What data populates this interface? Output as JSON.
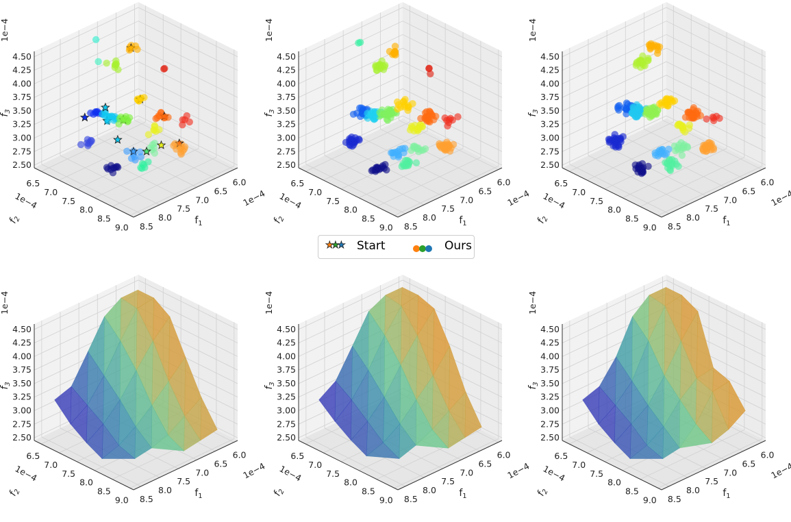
{
  "legend": {
    "start_label": "Start",
    "ours_label": "Ours",
    "start_colors": [
      "#ff7f0e",
      "#2ca02c",
      "#1f77b4"
    ],
    "ours_colors": [
      "#ff7f0e",
      "#2ca02c",
      "#1f77b4"
    ]
  },
  "axes_common": {
    "xlabel": "f1",
    "ylabel": "f2",
    "zlabel": "f3",
    "offset_text": "1e−4",
    "f1_lim": [
      5.9,
      8.7
    ],
    "f2_lim": [
      6.3,
      9.1
    ],
    "f3_lim": [
      2.45,
      4.6
    ],
    "f1_ticks": [
      "6.0",
      "6.5",
      "7.0",
      "7.5",
      "8.0",
      "8.5"
    ],
    "f2_ticks": [
      "6.5",
      "7.0",
      "7.5",
      "8.0",
      "8.5",
      "9.0"
    ],
    "f3_ticks": [
      "2.50",
      "2.75",
      "3.00",
      "3.25",
      "3.50",
      "3.75",
      "4.00",
      "4.25",
      "4.50"
    ],
    "grid": true
  },
  "chart_data": [
    {
      "type": "scatter",
      "clusters": [
        {
          "f1": 7.99,
          "f2": 7.78,
          "f3": 2.7,
          "color": "#10108a",
          "n": 10
        },
        {
          "f1": 7.96,
          "f2": 7.06,
          "f3": 2.9,
          "color": "#3a4ae0",
          "n": 8
        },
        {
          "f1": 7.61,
          "f2": 6.89,
          "f3": 3.3,
          "color": "#1030f0",
          "n": 8
        },
        {
          "f1": 7.52,
          "f2": 7.18,
          "f3": 3.3,
          "color": "#10c8f0",
          "n": 14
        },
        {
          "f1": 7.48,
          "f2": 7.82,
          "f3": 2.8,
          "color": "#40a0ff",
          "n": 8
        },
        {
          "f1": 7.48,
          "f2": 8.11,
          "f3": 2.7,
          "color": "#30f0a0",
          "n": 6
        },
        {
          "f1": 7.42,
          "f2": 7.47,
          "f3": 3.3,
          "color": "#80f040",
          "n": 12
        },
        {
          "f1": 7.44,
          "f2": 7.26,
          "f3": 4.25,
          "color": "#a8f030",
          "n": 8
        },
        {
          "f1": 7.45,
          "f2": 6.73,
          "f3": 4.55,
          "color": "#30f0d0",
          "n": 1
        },
        {
          "f1": 7.5,
          "f2": 6.85,
          "f3": 4.2,
          "color": "#40f0c0",
          "n": 1
        },
        {
          "f1": 7.09,
          "f2": 7.32,
          "f3": 4.45,
          "color": "#ffb000",
          "n": 6
        },
        {
          "f1": 7.22,
          "f2": 7.74,
          "f3": 3.7,
          "color": "#ffd000",
          "n": 8
        },
        {
          "f1": 6.98,
          "f2": 7.88,
          "f3": 3.1,
          "color": "#e8f020",
          "n": 7
        },
        {
          "f1": 6.91,
          "f2": 8.09,
          "f3": 3.4,
          "color": "#ff6a10",
          "n": 10
        },
        {
          "f1": 6.72,
          "f2": 8.47,
          "f3": 3.4,
          "color": "#f03020",
          "n": 5
        },
        {
          "f1": 6.93,
          "f2": 8.12,
          "f3": 4.3,
          "color": "#e02010",
          "n": 2
        },
        {
          "f1": 6.85,
          "f2": 8.51,
          "f3": 2.95,
          "color": "#ffa030",
          "n": 12
        },
        {
          "f1": 7.1,
          "f2": 8.0,
          "f3": 2.85,
          "color": "#80f0a0",
          "n": 6
        }
      ],
      "stars": [
        {
          "f1": 7.96,
          "f2": 6.95,
          "f3": 3.35,
          "color": "#1030f0"
        },
        {
          "f1": 7.55,
          "f2": 7.1,
          "f3": 3.45,
          "color": "#10c8f0"
        },
        {
          "f1": 7.6,
          "f2": 7.2,
          "f3": 3.25,
          "color": "#10c8f0"
        },
        {
          "f1": 7.6,
          "f2": 7.5,
          "f3": 3.0,
          "color": "#10c8f0"
        },
        {
          "f1": 7.48,
          "f2": 7.82,
          "f3": 2.85,
          "color": "#40a0ff"
        },
        {
          "f1": 7.3,
          "f2": 8.0,
          "f3": 2.85,
          "color": "#50e070"
        },
        {
          "f1": 7.42,
          "f2": 7.47,
          "f3": 3.3,
          "color": "#80f040"
        },
        {
          "f1": 7.0,
          "f2": 8.1,
          "f3": 2.9,
          "color": "#e8f020"
        },
        {
          "f1": 6.85,
          "f2": 8.45,
          "f3": 3.0,
          "color": "#ff7010"
        },
        {
          "f1": 6.91,
          "f2": 8.09,
          "f3": 3.4,
          "color": "#ff6a10"
        },
        {
          "f1": 7.22,
          "f2": 7.74,
          "f3": 3.7,
          "color": "#ffd000"
        },
        {
          "f1": 7.05,
          "f2": 7.3,
          "f3": 4.45,
          "color": "#ffb000"
        }
      ]
    },
    {
      "type": "scatter",
      "clusters": [
        {
          "f1": 7.99,
          "f2": 7.78,
          "f3": 2.7,
          "color": "#10108a",
          "n": 16
        },
        {
          "f1": 7.96,
          "f2": 7.06,
          "f3": 2.95,
          "color": "#1a2ad0",
          "n": 22
        },
        {
          "f1": 7.61,
          "f2": 6.95,
          "f3": 3.35,
          "color": "#1060f0",
          "n": 14
        },
        {
          "f1": 7.52,
          "f2": 7.18,
          "f3": 3.35,
          "color": "#20d0f0",
          "n": 30
        },
        {
          "f1": 7.48,
          "f2": 7.82,
          "f3": 2.85,
          "color": "#40b0ff",
          "n": 14
        },
        {
          "f1": 7.48,
          "f2": 8.11,
          "f3": 2.7,
          "color": "#50f0a0",
          "n": 14
        },
        {
          "f1": 7.42,
          "f2": 7.47,
          "f3": 3.4,
          "color": "#80f060",
          "n": 30
        },
        {
          "f1": 7.44,
          "f2": 7.26,
          "f3": 4.25,
          "color": "#a8f030",
          "n": 16
        },
        {
          "f1": 7.45,
          "f2": 6.73,
          "f3": 4.5,
          "color": "#30f0a0",
          "n": 2
        },
        {
          "f1": 7.09,
          "f2": 7.32,
          "f3": 4.4,
          "color": "#ffb000",
          "n": 10
        },
        {
          "f1": 7.22,
          "f2": 7.74,
          "f3": 3.6,
          "color": "#ffd000",
          "n": 14
        },
        {
          "f1": 6.98,
          "f2": 7.88,
          "f3": 3.15,
          "color": "#e8f020",
          "n": 14
        },
        {
          "f1": 6.91,
          "f2": 8.09,
          "f3": 3.4,
          "color": "#ff6a10",
          "n": 20
        },
        {
          "f1": 6.72,
          "f2": 8.47,
          "f3": 3.4,
          "color": "#f03020",
          "n": 8
        },
        {
          "f1": 6.93,
          "f2": 8.12,
          "f3": 4.3,
          "color": "#e02010",
          "n": 3
        },
        {
          "f1": 6.85,
          "f2": 8.51,
          "f3": 2.95,
          "color": "#ffa030",
          "n": 24
        },
        {
          "f1": 7.1,
          "f2": 8.0,
          "f3": 2.85,
          "color": "#80f0a0",
          "n": 12
        }
      ],
      "stars": []
    },
    {
      "type": "scatter",
      "clusters": [
        {
          "f1": 7.99,
          "f2": 7.78,
          "f3": 2.7,
          "color": "#10108a",
          "n": 18
        },
        {
          "f1": 7.96,
          "f2": 7.06,
          "f3": 2.95,
          "color": "#1a2ad0",
          "n": 26
        },
        {
          "f1": 7.61,
          "f2": 6.95,
          "f3": 3.4,
          "color": "#1060f0",
          "n": 18
        },
        {
          "f1": 7.52,
          "f2": 7.18,
          "f3": 3.4,
          "color": "#20c8f0",
          "n": 34
        },
        {
          "f1": 7.48,
          "f2": 7.82,
          "f3": 2.85,
          "color": "#40b0ff",
          "n": 14
        },
        {
          "f1": 7.48,
          "f2": 8.11,
          "f3": 2.7,
          "color": "#50f0a0",
          "n": 16
        },
        {
          "f1": 7.42,
          "f2": 7.47,
          "f3": 3.45,
          "color": "#90f050",
          "n": 28
        },
        {
          "f1": 7.44,
          "f2": 7.26,
          "f3": 4.3,
          "color": "#b0f030",
          "n": 18
        },
        {
          "f1": 7.05,
          "f2": 7.25,
          "f3": 4.45,
          "color": "#ffb000",
          "n": 14
        },
        {
          "f1": 7.22,
          "f2": 7.7,
          "f3": 3.65,
          "color": "#ffd000",
          "n": 18
        },
        {
          "f1": 6.98,
          "f2": 7.88,
          "f3": 3.15,
          "color": "#e8f020",
          "n": 14
        },
        {
          "f1": 6.91,
          "f2": 8.09,
          "f3": 3.45,
          "color": "#ff6a10",
          "n": 24
        },
        {
          "f1": 6.72,
          "f2": 8.47,
          "f3": 3.45,
          "color": "#f03020",
          "n": 6
        },
        {
          "f1": 6.85,
          "f2": 8.51,
          "f3": 2.95,
          "color": "#ffa030",
          "n": 26
        },
        {
          "f1": 7.1,
          "f2": 8.0,
          "f3": 2.85,
          "color": "#80f0a0",
          "n": 14
        }
      ],
      "stars": []
    },
    {
      "type": "surface",
      "f1": [
        6.18,
        6.63,
        7.08,
        7.52,
        7.97,
        8.42
      ],
      "f2": [
        6.58,
        7.03,
        7.48,
        7.92,
        8.37,
        8.82
      ],
      "f3": [
        [
          4.5,
          4.5,
          4.3,
          3.7,
          3.1,
          2.65
        ],
        [
          4.5,
          4.45,
          4.0,
          3.4,
          2.9,
          2.6
        ],
        [
          4.3,
          4.0,
          3.6,
          3.1,
          2.7,
          2.55
        ],
        [
          3.8,
          3.5,
          3.2,
          2.85,
          2.6,
          null
        ],
        [
          3.3,
          3.1,
          2.9,
          2.65,
          2.55,
          null
        ],
        [
          3.2,
          2.9,
          2.7,
          2.55,
          null,
          null
        ]
      ]
    },
    {
      "type": "surface",
      "f1": [
        6.18,
        6.63,
        7.08,
        7.52,
        7.97,
        8.42
      ],
      "f2": [
        6.58,
        7.03,
        7.48,
        7.92,
        8.37,
        8.82
      ],
      "f3": [
        [
          4.55,
          4.55,
          4.45,
          3.9,
          3.2,
          2.7
        ],
        [
          4.55,
          4.5,
          4.1,
          3.5,
          3.0,
          2.65
        ],
        [
          4.4,
          4.1,
          3.7,
          3.2,
          2.8,
          2.6
        ],
        [
          3.9,
          3.6,
          3.25,
          2.9,
          2.65,
          null
        ],
        [
          3.4,
          3.2,
          2.95,
          2.7,
          2.55,
          null
        ],
        [
          3.2,
          2.95,
          2.75,
          2.6,
          null,
          null
        ]
      ]
    },
    {
      "type": "surface",
      "f1": [
        6.18,
        6.63,
        7.08,
        7.52,
        7.97,
        8.42
      ],
      "f2": [
        6.58,
        7.03,
        7.48,
        7.92,
        8.37,
        8.82
      ],
      "f3": [
        [
          4.55,
          4.55,
          4.4,
          3.5,
          3.4,
          3.0
        ],
        [
          4.55,
          4.5,
          4.0,
          3.45,
          3.35,
          2.8
        ],
        [
          4.3,
          4.0,
          3.5,
          3.2,
          2.9,
          2.7
        ],
        [
          3.7,
          3.4,
          3.1,
          2.85,
          2.6,
          null
        ],
        [
          3.3,
          3.1,
          2.9,
          2.65,
          2.55,
          null
        ],
        [
          3.2,
          2.9,
          2.7,
          2.55,
          null,
          null
        ]
      ]
    }
  ]
}
